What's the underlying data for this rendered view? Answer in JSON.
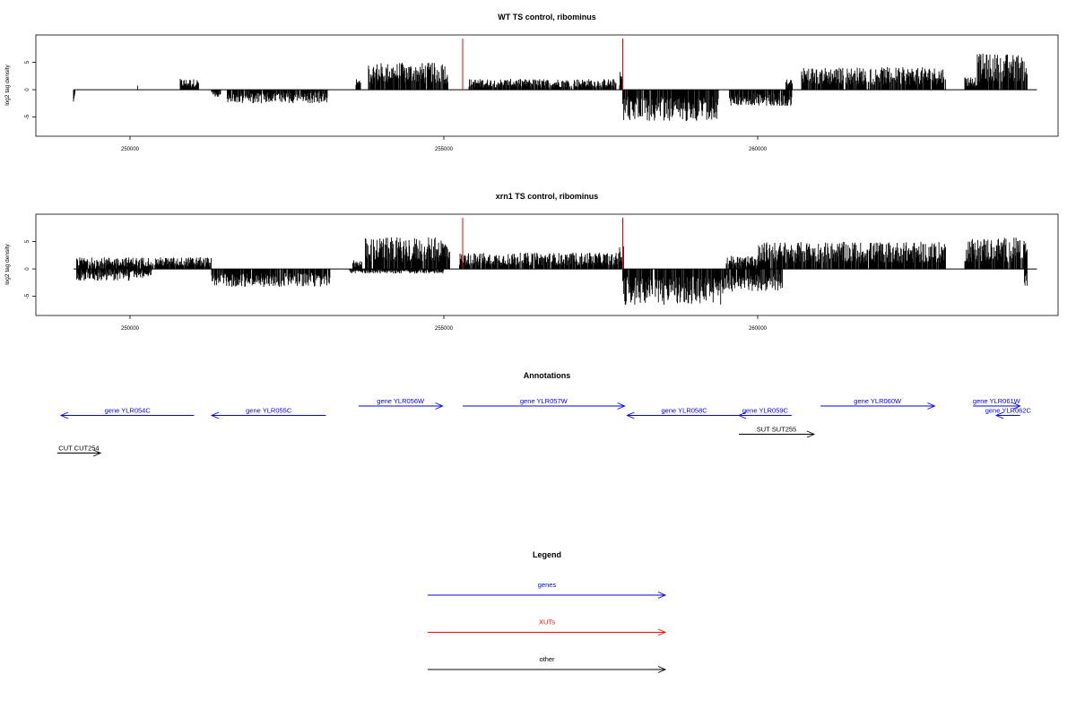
{
  "chart_data": [
    {
      "type": "bar",
      "title": "WT TS control, ribominus",
      "ylabel": "log2 tag density",
      "xlim": [
        249100,
        264450
      ],
      "ylim": [
        -8.5,
        10
      ],
      "x_ticks": [
        250000,
        255000,
        260000
      ],
      "x_tick_labels": [
        "250000",
        "255000",
        "260000"
      ],
      "y_ticks": [
        -5,
        0,
        5
      ],
      "y_tick_labels": [
        "-5",
        "0",
        "5"
      ],
      "xut_markers": [
        255300,
        257850
      ],
      "plus_strand_segments": [
        {
          "start": 250120,
          "end": 250120,
          "mean": 1.0
        },
        {
          "start": 250800,
          "end": 251100,
          "mean": 1.2
        },
        {
          "start": 253600,
          "end": 253680,
          "mean": 1.2
        },
        {
          "start": 253800,
          "end": 255080,
          "mean": 3.0
        },
        {
          "start": 255400,
          "end": 257750,
          "mean": 1.2
        },
        {
          "start": 257800,
          "end": 257850,
          "mean": 2.0
        },
        {
          "start": 260450,
          "end": 260560,
          "mean": 1.2
        },
        {
          "start": 260700,
          "end": 263000,
          "mean": 2.5
        },
        {
          "start": 263300,
          "end": 263500,
          "mean": 1.5
        },
        {
          "start": 263500,
          "end": 264300,
          "mean": 4.0
        }
      ],
      "minus_strand_segments": [
        {
          "start": 249100,
          "end": 249130,
          "mean": -1.5
        },
        {
          "start": 251300,
          "end": 251450,
          "mean": -0.8
        },
        {
          "start": 251550,
          "end": 253150,
          "mean": -1.5
        },
        {
          "start": 257850,
          "end": 259380,
          "mean": -3.5
        },
        {
          "start": 259550,
          "end": 260550,
          "mean": -1.8
        }
      ]
    },
    {
      "type": "bar",
      "title": "xrn1 TS control, ribominus",
      "ylabel": "log2 tag density",
      "xlim": [
        249100,
        264450
      ],
      "ylim": [
        -8.5,
        10
      ],
      "x_ticks": [
        250000,
        255000,
        260000
      ],
      "x_tick_labels": [
        "250000",
        "255000",
        "260000"
      ],
      "y_ticks": [
        -5,
        0,
        5
      ],
      "y_tick_labels": [
        "-5",
        "0",
        "5"
      ],
      "xut_markers": [
        255300,
        257850
      ],
      "plus_strand_segments": [
        {
          "start": 249150,
          "end": 251300,
          "mean": 1.3
        },
        {
          "start": 253550,
          "end": 253700,
          "mean": 1.0
        },
        {
          "start": 253750,
          "end": 255100,
          "mean": 3.5
        },
        {
          "start": 255250,
          "end": 257800,
          "mean": 1.8
        },
        {
          "start": 257800,
          "end": 257870,
          "mean": 2.5
        },
        {
          "start": 259500,
          "end": 260100,
          "mean": 1.5
        },
        {
          "start": 260000,
          "end": 263000,
          "mean": 3.0
        },
        {
          "start": 263300,
          "end": 264300,
          "mean": 3.5
        }
      ],
      "minus_strand_segments": [
        {
          "start": 249150,
          "end": 250000,
          "mean": -1.3
        },
        {
          "start": 250000,
          "end": 250350,
          "mean": -1.0
        },
        {
          "start": 251300,
          "end": 253200,
          "mean": -2.0
        },
        {
          "start": 253500,
          "end": 255000,
          "mean": -0.5
        },
        {
          "start": 257850,
          "end": 259450,
          "mean": -4.0
        },
        {
          "start": 259450,
          "end": 260400,
          "mean": -2.5
        },
        {
          "start": 264250,
          "end": 264300,
          "mean": -2.0
        }
      ]
    }
  ],
  "annotations": {
    "title": "Annotations",
    "features": [
      {
        "label": "gene YLR054C",
        "start": 248900,
        "end": 251020,
        "strand": "-",
        "type": "gene",
        "row": 1
      },
      {
        "label": "gene YLR055C",
        "start": 251300,
        "end": 253120,
        "strand": "-",
        "type": "gene",
        "row": 1
      },
      {
        "label": "gene YLR056W",
        "start": 253640,
        "end": 254980,
        "strand": "+",
        "type": "gene",
        "row": 0
      },
      {
        "label": "gene YLR057W",
        "start": 255300,
        "end": 257880,
        "strand": "+",
        "type": "gene",
        "row": 0
      },
      {
        "label": "gene YLR058C",
        "start": 257920,
        "end": 259740,
        "strand": "-",
        "type": "gene",
        "row": 1
      },
      {
        "label": "gene YLR059C",
        "start": 259700,
        "end": 260540,
        "strand": "-",
        "type": "gene",
        "row": 1
      },
      {
        "label": "gene YLR060W",
        "start": 261000,
        "end": 262820,
        "strand": "+",
        "type": "gene",
        "row": 0
      },
      {
        "label": "gene YLR061W",
        "start": 263430,
        "end": 264180,
        "strand": "+",
        "type": "gene",
        "row": 0
      },
      {
        "label": "gene YLR062C",
        "start": 263800,
        "end": 264180,
        "strand": "-",
        "type": "gene",
        "row": 1
      },
      {
        "label": "SUT SUT255",
        "start": 259700,
        "end": 260900,
        "strand": "+",
        "type": "other",
        "row": 3
      },
      {
        "label": "CUT CUT254",
        "start": 248840,
        "end": 249530,
        "strand": "+",
        "type": "other",
        "row": 5
      }
    ]
  },
  "legend": {
    "title": "Legend",
    "items": [
      {
        "label": "genes",
        "color": "#0000ff"
      },
      {
        "label": "XUTs",
        "color": "#ff0000"
      },
      {
        "label": "other",
        "color": "#000000"
      }
    ]
  },
  "colors": {
    "signal": "#000000",
    "xut": "#ff0000",
    "gene": "#0000ff",
    "other": "#000000"
  }
}
